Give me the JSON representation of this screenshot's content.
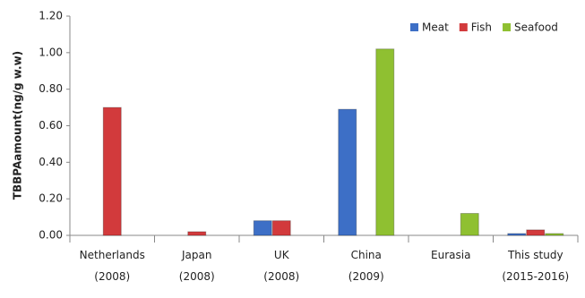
{
  "chart_data": {
    "type": "bar",
    "y_label": "TBBPAamount(ng/g w.w)",
    "categories": [
      "Netherlands\n(2008)",
      "Japan\n(2008)",
      "UK\n(2008)",
      "China\n(2009)",
      "Eurasia",
      "This study\n(2015-2016)"
    ],
    "series": [
      {
        "name": "Meat",
        "color": "#3d6fc6",
        "values": [
          null,
          null,
          0.08,
          0.69,
          null,
          0.01
        ]
      },
      {
        "name": "Fish",
        "color": "#d23a3c",
        "values": [
          0.7,
          0.02,
          0.08,
          null,
          null,
          0.03
        ]
      },
      {
        "name": "Seafood",
        "color": "#8fc031",
        "values": [
          null,
          null,
          null,
          1.02,
          0.12,
          0.01
        ]
      }
    ],
    "ylim": [
      0,
      1.2
    ],
    "yticks": [
      {
        "value": 0,
        "label": "0.00"
      },
      {
        "value": 0.2,
        "label": "0.20"
      },
      {
        "value": 0.4,
        "label": "0.40"
      },
      {
        "value": 0.6,
        "label": "0.60"
      },
      {
        "value": 0.8,
        "label": "0.80"
      },
      {
        "value": 1.0,
        "label": "1.00"
      },
      {
        "value": 1.2,
        "label": "1.20"
      }
    ],
    "legend": "top-right"
  }
}
